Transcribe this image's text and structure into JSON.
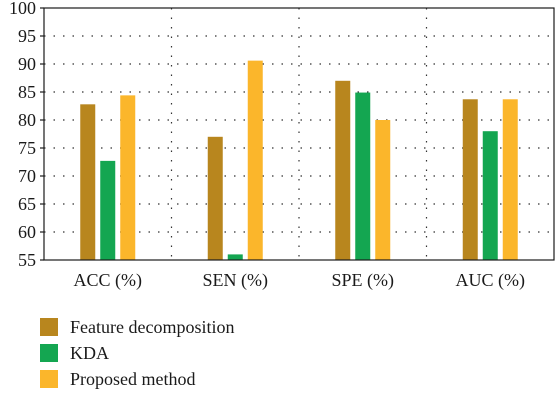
{
  "chart_data": {
    "type": "bar",
    "categories": [
      "ACC (%)",
      "SEN (%)",
      "SPE (%)",
      "AUC (%)"
    ],
    "series": [
      {
        "name": "Feature decomposition",
        "color": "#B8861E",
        "values": [
          82.8,
          77.0,
          87.0,
          83.7
        ]
      },
      {
        "name": "KDA",
        "color": "#14A651",
        "values": [
          72.7,
          56.0,
          84.9,
          78.0
        ]
      },
      {
        "name": "Proposed method",
        "color": "#FBB62B",
        "values": [
          84.4,
          90.6,
          80.0,
          83.7
        ]
      }
    ],
    "yticks": [
      55,
      60,
      65,
      70,
      75,
      80,
      85,
      90,
      95,
      100
    ],
    "ylim": [
      55,
      100
    ],
    "grid": true,
    "legend_position": "bottom-left"
  }
}
